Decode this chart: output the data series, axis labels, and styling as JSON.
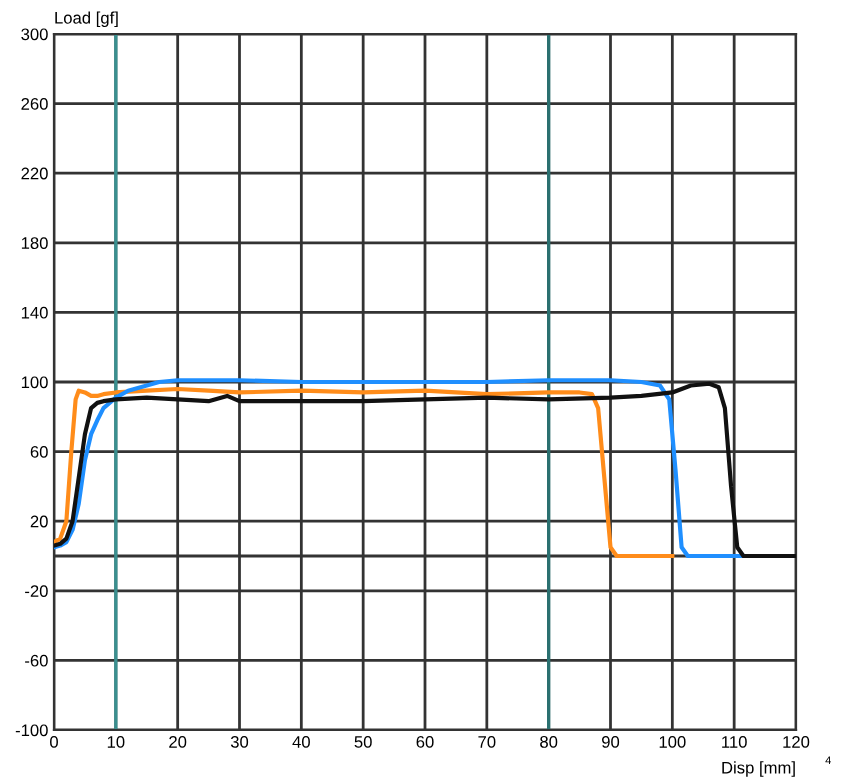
{
  "chart_data": {
    "type": "line",
    "xlabel": "Disp [mm]",
    "ylabel": "Load [gf]",
    "xlim": [
      0,
      120
    ],
    "xticks": [
      0,
      10,
      20,
      30,
      40,
      50,
      60,
      70,
      80,
      90,
      100,
      110,
      120
    ],
    "ylim": [
      -100,
      300
    ],
    "yticks": [
      -100,
      -60,
      -20,
      {
        "value": 0,
        "label": null
      },
      20,
      60,
      100,
      140,
      180,
      220,
      260,
      300
    ],
    "grid": true,
    "legend": false,
    "ref_lines": [
      {
        "axis": "x",
        "value": 10,
        "label": null,
        "color": "#3a8f8f"
      },
      {
        "axis": "x",
        "value": 80,
        "label": null,
        "color": "#2a7070"
      }
    ],
    "annotations": [
      "4"
    ],
    "series": [
      {
        "color": "#ff8c1a",
        "x": [
          0,
          1,
          2,
          2.8,
          3.5,
          4,
          5,
          6,
          7,
          8,
          10,
          15,
          20,
          25,
          30,
          40,
          50,
          60,
          70,
          80,
          85,
          87,
          88,
          89,
          90,
          91,
          95,
          100
        ],
        "values": [
          8,
          10,
          20,
          60,
          90,
          95,
          94,
          92,
          92,
          93,
          94,
          95,
          96,
          95,
          94,
          95,
          94,
          95,
          93,
          94,
          94,
          93,
          85,
          45,
          5,
          0,
          0,
          0
        ]
      },
      {
        "color": "#1f8fff",
        "x": [
          0,
          1,
          2,
          3,
          4,
          5,
          6,
          7,
          8,
          9,
          10,
          12,
          15,
          17,
          20,
          30,
          40,
          50,
          60,
          70,
          80,
          90,
          95,
          98,
          99.5,
          100.5,
          101.5,
          102.5,
          105,
          110,
          113
        ],
        "values": [
          5,
          6,
          8,
          15,
          30,
          55,
          70,
          78,
          85,
          88,
          91,
          95,
          98,
          100,
          101,
          101,
          100,
          100,
          100,
          100,
          101,
          101,
          100,
          98,
          90,
          50,
          5,
          0,
          0,
          0,
          0
        ]
      },
      {
        "color": "#111111",
        "x": [
          0,
          1,
          2,
          3,
          4,
          5,
          6,
          7,
          8,
          10,
          15,
          20,
          25,
          28,
          30,
          40,
          50,
          60,
          70,
          80,
          90,
          95,
          100,
          103,
          106,
          107.5,
          108.5,
          109.5,
          110.5,
          111.5,
          115,
          120
        ],
        "values": [
          6,
          7,
          10,
          20,
          45,
          70,
          85,
          88,
          89,
          90,
          91,
          90,
          89,
          92,
          89,
          89,
          89,
          90,
          91,
          90,
          91,
          92,
          94,
          98,
          99,
          97,
          85,
          40,
          5,
          0,
          0,
          0
        ]
      }
    ]
  }
}
